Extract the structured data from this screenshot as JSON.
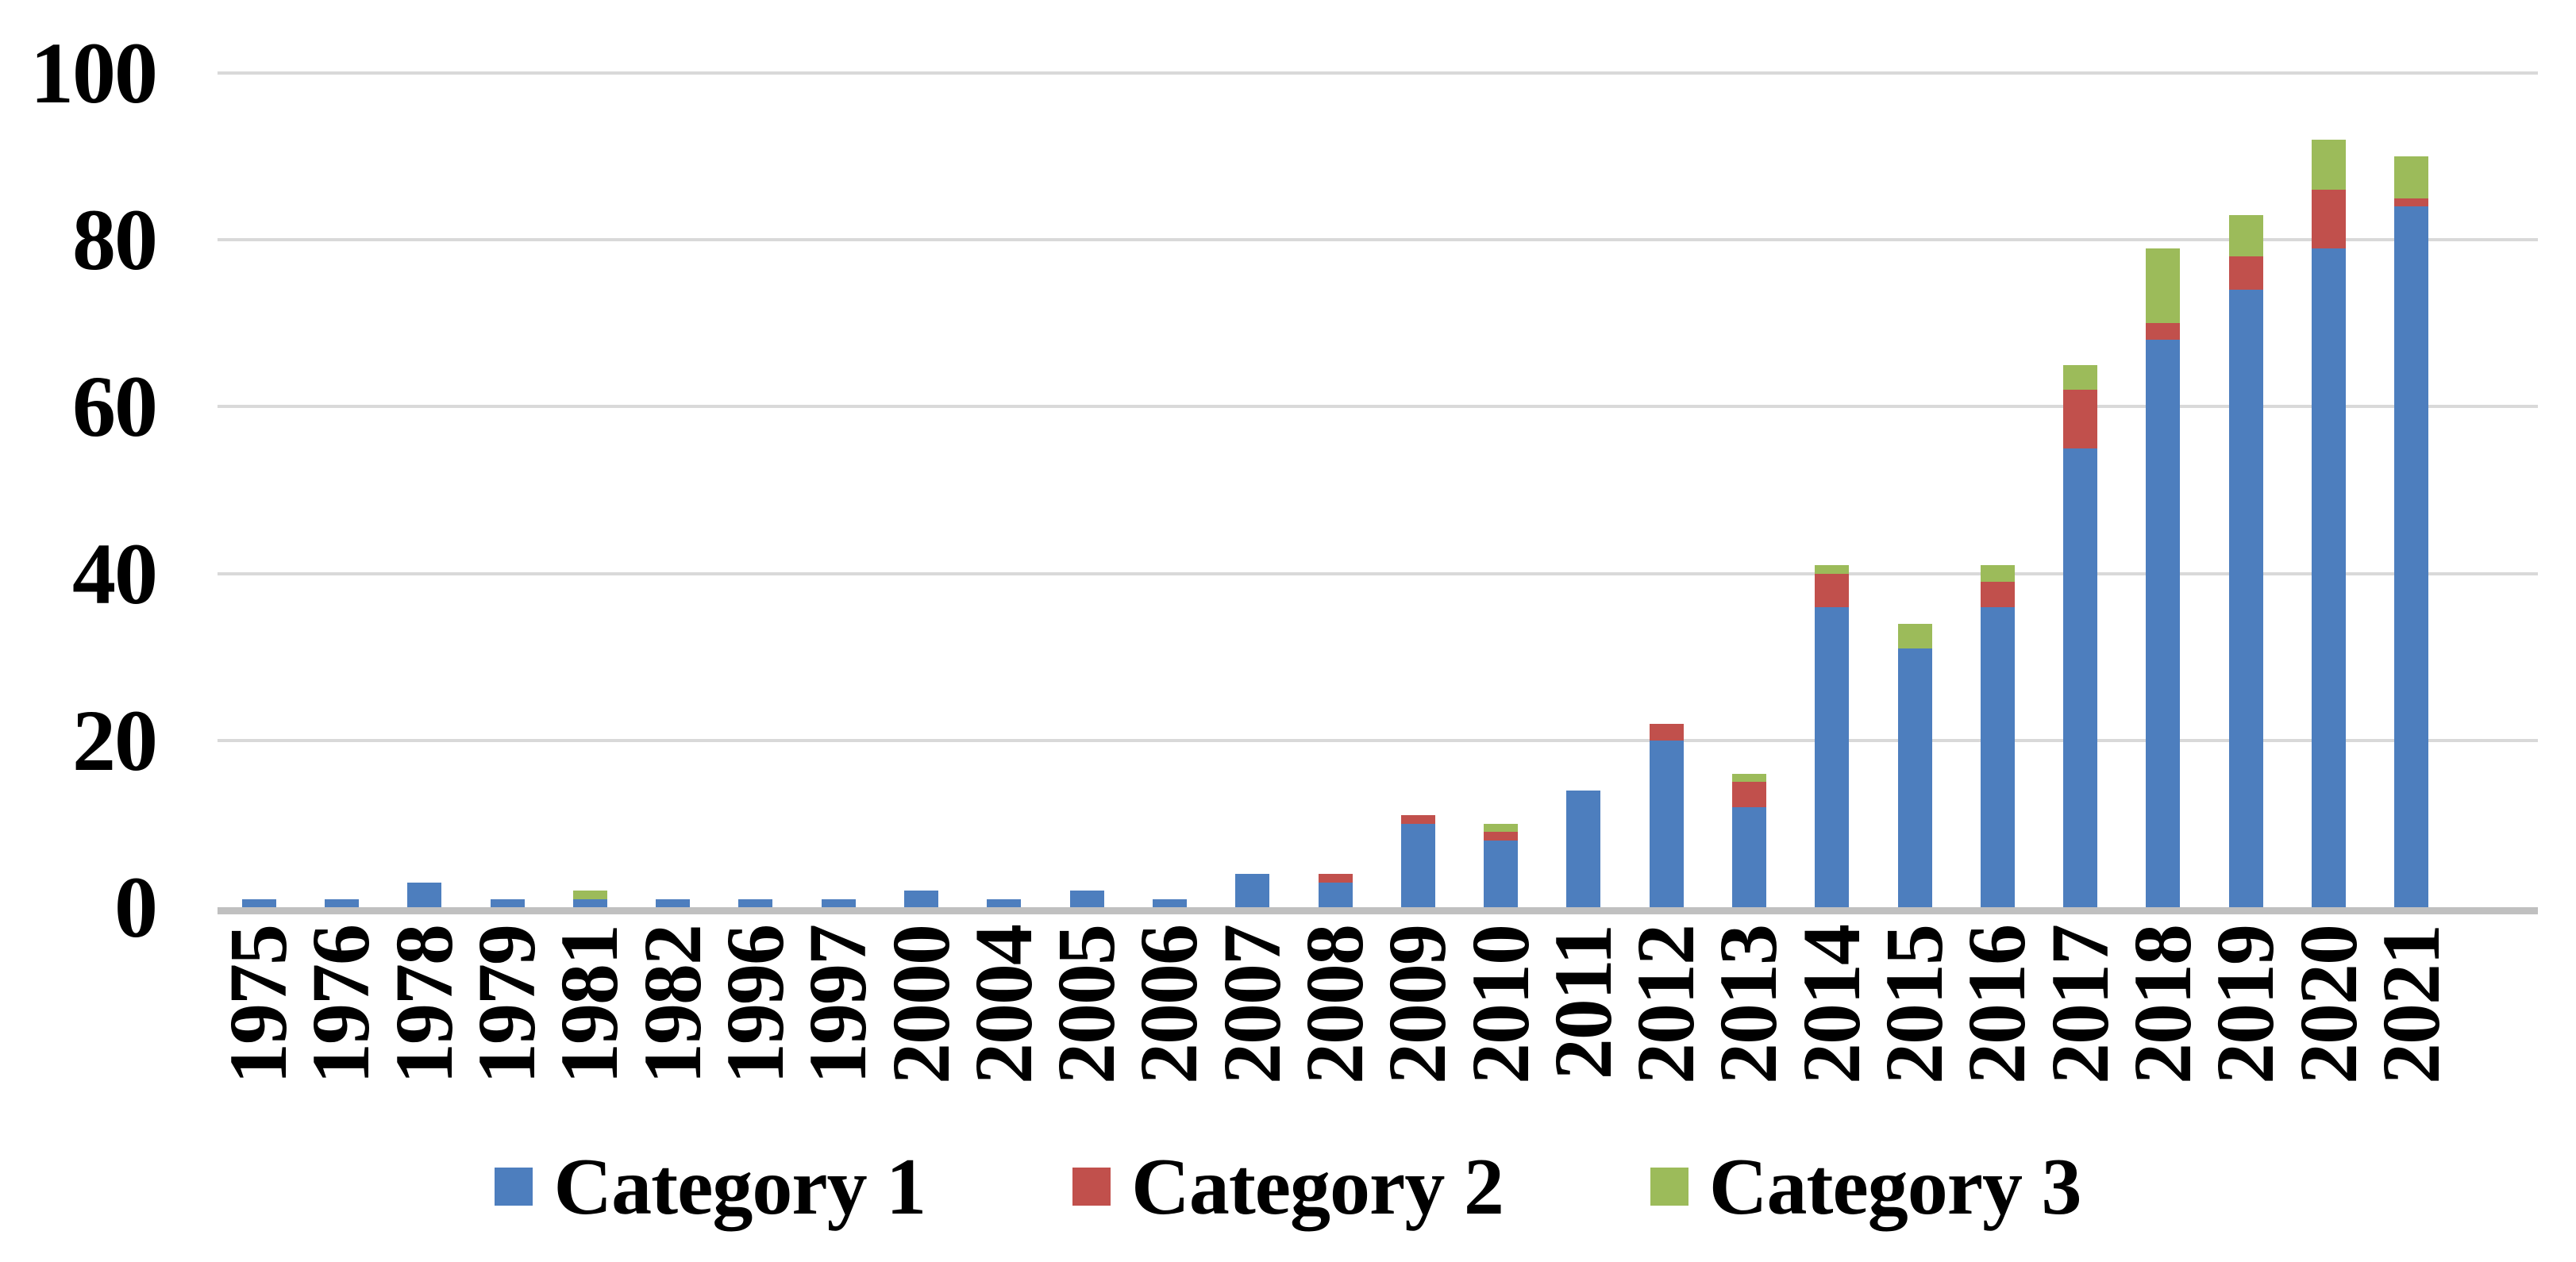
{
  "figure": {
    "background": "#FFFFFF",
    "text_color": "#000000",
    "gridline_color": "#D9D9D9",
    "axis_line_color": "#C0C0C0"
  },
  "chart_data": {
    "type": "bar",
    "stacked": true,
    "title": "",
    "xlabel": "",
    "ylabel": "",
    "ylim": [
      0,
      100
    ],
    "yticks": [
      0,
      20,
      40,
      60,
      80,
      100
    ],
    "grid": "horizontal",
    "legend_position": "bottom",
    "categories": [
      "1975",
      "1976",
      "1978",
      "1979",
      "1981",
      "1982",
      "1996",
      "1997",
      "2000",
      "2004",
      "2005",
      "2006",
      "2007",
      "2008",
      "2009",
      "2010",
      "2011",
      "2012",
      "2013",
      "2014",
      "2015",
      "2016",
      "2017",
      "2018",
      "2019",
      "2020",
      "2021"
    ],
    "series": [
      {
        "name": "Category 1",
        "color": "#4D7EBE",
        "values": [
          1,
          1,
          3,
          1,
          1,
          1,
          1,
          1,
          2,
          1,
          2,
          1,
          4,
          3,
          10,
          8,
          14,
          20,
          12,
          36,
          31,
          36,
          55,
          68,
          74,
          79,
          84
        ]
      },
      {
        "name": "Category 2",
        "color": "#C1504C",
        "values": [
          0,
          0,
          0,
          0,
          0,
          0,
          0,
          0,
          0,
          0,
          0,
          0,
          0,
          1,
          1,
          1,
          0,
          2,
          3,
          4,
          0,
          3,
          7,
          2,
          4,
          7,
          1
        ]
      },
      {
        "name": "Category 3",
        "color": "#9CBB5A",
        "values": [
          0,
          0,
          0,
          0,
          1,
          0,
          0,
          0,
          0,
          0,
          0,
          0,
          0,
          0,
          0,
          1,
          0,
          0,
          1,
          1,
          3,
          2,
          3,
          9,
          5,
          6,
          5
        ]
      }
    ]
  }
}
